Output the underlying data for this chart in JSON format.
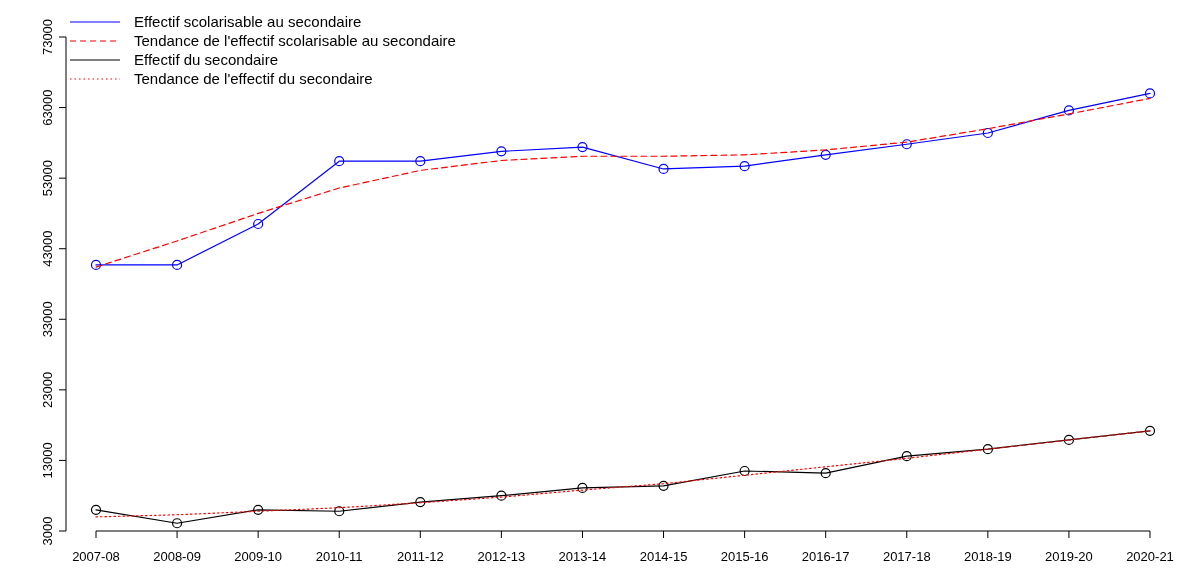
{
  "chart_data": {
    "type": "line",
    "categories": [
      "2007-08",
      "2008-09",
      "2009-10",
      "2010-11",
      "2011-12",
      "2012-13",
      "2013-14",
      "2014-15",
      "2015-16",
      "2016-17",
      "2017-18",
      "2018-19",
      "2019-20",
      "2020-21"
    ],
    "series": [
      {
        "name": "Effectif scolarisable au secondaire",
        "color": "#0000ff",
        "marker": "circle",
        "line_style": "solid",
        "values": [
          40700,
          40700,
          46500,
          55400,
          55400,
          56800,
          57400,
          54300,
          54700,
          56300,
          57800,
          59400,
          62600,
          65000
        ]
      },
      {
        "name": "Tendance de l'effectif scolarisable au secondaire",
        "color": "#ff0000",
        "marker": "none",
        "line_style": "dashed",
        "values": [
          40400,
          44100,
          48000,
          51600,
          54100,
          55500,
          56100,
          56100,
          56300,
          57000,
          58100,
          60000,
          62100,
          64300
        ]
      },
      {
        "name": "Effectif du secondaire",
        "color": "#000000",
        "marker": "circle",
        "line_style": "solid",
        "values": [
          6000,
          4100,
          6000,
          5800,
          7100,
          8000,
          9100,
          9400,
          11500,
          11200,
          13600,
          14600,
          15900,
          17200
        ]
      },
      {
        "name": "Tendance de l'effectif du secondaire",
        "color": "#ff0000",
        "marker": "none",
        "line_style": "dotted",
        "values": [
          5000,
          5300,
          5800,
          6300,
          7000,
          7800,
          8800,
          9700,
          10900,
          12100,
          13300,
          14600,
          15900,
          17200
        ]
      }
    ],
    "ylim": [
      3000,
      73000
    ],
    "yticks": [
      3000,
      13000,
      23000,
      33000,
      43000,
      53000,
      63000,
      73000
    ],
    "grid": false,
    "legend": "top left"
  }
}
